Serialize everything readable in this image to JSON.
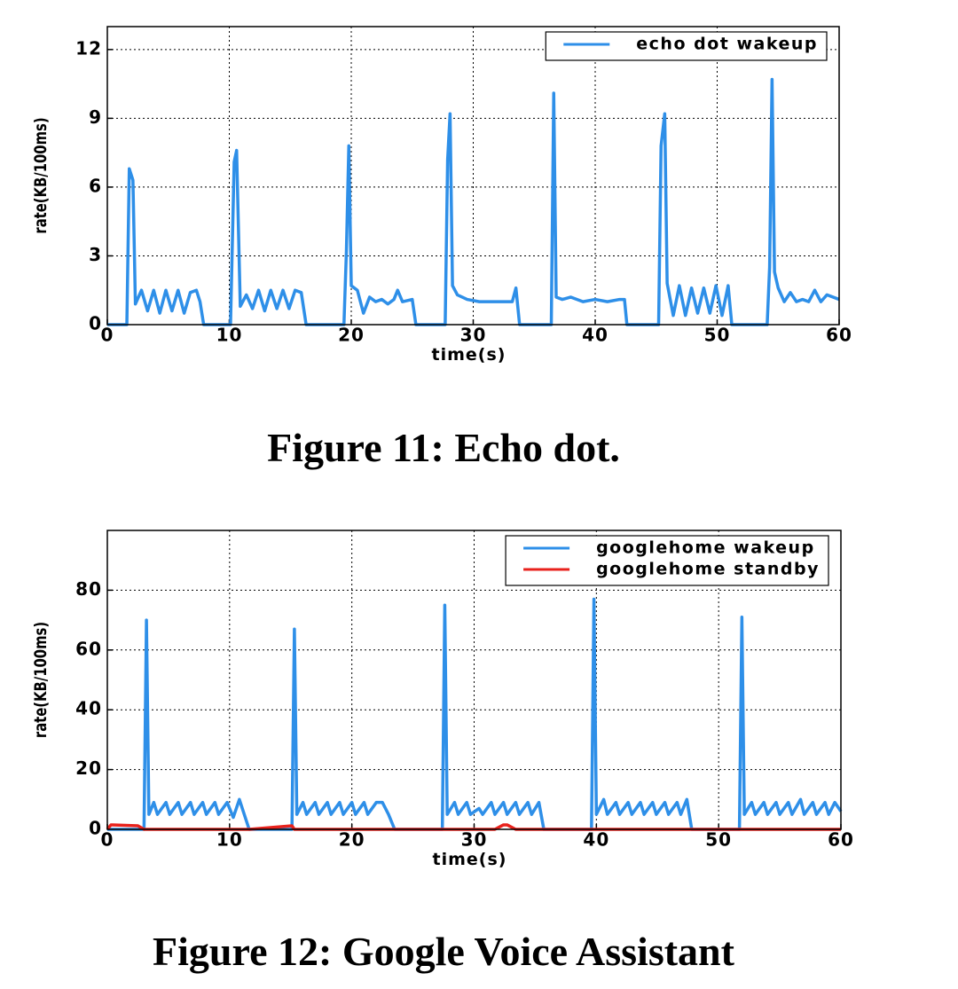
{
  "chart_data": [
    {
      "type": "line",
      "caption": "Figure 11: Echo dot.",
      "x_label": "time(s)",
      "y_label": "rate(KB/100ms)",
      "xlim": [
        0,
        60
      ],
      "xticks": [
        0,
        10,
        20,
        30,
        40,
        50,
        60
      ],
      "ylim": [
        0,
        13
      ],
      "yticks": [
        0,
        3,
        6,
        9,
        12
      ],
      "grid": true,
      "legend": "upper right",
      "x": [
        0,
        1.6,
        1.8,
        2.1,
        2.3,
        2.8,
        3.3,
        3.8,
        4.3,
        4.8,
        5.3,
        5.8,
        6.3,
        6.8,
        7.3,
        7.6,
        7.9,
        10.1,
        10.4,
        10.6,
        10.9,
        11.4,
        11.9,
        12.4,
        12.9,
        13.4,
        13.9,
        14.4,
        14.9,
        15.4,
        15.9,
        16.3,
        19.4,
        19.6,
        19.8,
        20.0,
        20.5,
        21.0,
        21.5,
        22.0,
        22.5,
        23.0,
        23.5,
        23.8,
        24.2,
        25.0,
        25.3,
        27.7,
        27.9,
        28.1,
        28.3,
        28.7,
        29.5,
        30.5,
        31.5,
        32.5,
        33.2,
        33.5,
        33.8,
        36.4,
        36.6,
        36.8,
        37.3,
        38.0,
        39,
        40,
        41,
        42,
        42.4,
        42.6,
        45.2,
        45.4,
        45.7,
        45.9,
        46.4,
        46.9,
        47.4,
        47.9,
        48.4,
        48.9,
        49.4,
        49.9,
        50.4,
        50.9,
        51.2,
        54.1,
        54.3,
        54.5,
        54.7,
        55.0,
        55.5,
        56,
        56.5,
        57,
        57.5,
        58,
        58.5,
        59,
        60
      ],
      "series": [
        {
          "name": "echo dot wakeup",
          "color": "#2e8fe8",
          "values": [
            0,
            0,
            6.8,
            6.3,
            0.9,
            1.5,
            0.6,
            1.5,
            0.5,
            1.5,
            0.6,
            1.5,
            0.5,
            1.4,
            1.5,
            1.0,
            0,
            0,
            7.1,
            7.6,
            0.8,
            1.3,
            0.7,
            1.5,
            0.6,
            1.5,
            0.7,
            1.5,
            0.7,
            1.5,
            1.4,
            0,
            0,
            3.2,
            7.8,
            1.7,
            1.5,
            0.5,
            1.2,
            1.0,
            1.1,
            0.9,
            1.1,
            1.5,
            1.0,
            1.1,
            0,
            0,
            7.2,
            9.2,
            1.7,
            1.3,
            1.1,
            1.0,
            1.0,
            1.0,
            1.0,
            1.6,
            0,
            0,
            10.1,
            1.2,
            1.1,
            1.2,
            1.0,
            1.1,
            1.0,
            1.1,
            1.1,
            0,
            0,
            7.8,
            9.2,
            1.8,
            0.4,
            1.7,
            0.4,
            1.6,
            0.5,
            1.6,
            0.5,
            1.7,
            0.4,
            1.7,
            0,
            0,
            2.5,
            10.7,
            2.3,
            1.6,
            1.0,
            1.4,
            1.0,
            1.1,
            1.0,
            1.5,
            1.0,
            1.3,
            1.1
          ]
        }
      ]
    },
    {
      "type": "line",
      "caption": "Figure 12: Google Voice Assistant",
      "x_label": "time(s)",
      "y_label": "rate(KB/100ms)",
      "xlim": [
        0,
        60
      ],
      "xticks": [
        0,
        10,
        20,
        30,
        40,
        50,
        60
      ],
      "ylim": [
        0,
        100
      ],
      "yticks": [
        0,
        20,
        40,
        60,
        80
      ],
      "grid": true,
      "legend": "upper right",
      "x": [
        0,
        0.3,
        2.5,
        3.0,
        3.2,
        3.4,
        3.8,
        4.1,
        4.8,
        5.1,
        5.8,
        6.1,
        6.8,
        7.1,
        7.8,
        8.1,
        8.8,
        9.1,
        9.8,
        10.3,
        10.8,
        11.2,
        11.6,
        15.1,
        15.3,
        15.5,
        16.0,
        16.3,
        17.0,
        17.3,
        18.0,
        18.3,
        19.0,
        19.3,
        20.0,
        20.3,
        21.0,
        21.3,
        22.0,
        22.5,
        23.0,
        23.5,
        27.4,
        27.6,
        27.8,
        28.4,
        28.7,
        29.4,
        29.7,
        30.4,
        30.7,
        31.4,
        31.7,
        32.4,
        32.7,
        33.4,
        33.7,
        34.4,
        34.7,
        35.3,
        35.7,
        39.6,
        39.8,
        40.0,
        40.6,
        40.9,
        41.6,
        41.9,
        42.6,
        42.9,
        43.6,
        43.9,
        44.6,
        44.9,
        45.6,
        45.9,
        46.6,
        46.9,
        47.4,
        47.8,
        51.7,
        51.9,
        52.1,
        52.7,
        53.0,
        53.7,
        54.0,
        54.7,
        55.0,
        55.7,
        56.0,
        56.7,
        57.0,
        57.7,
        58.0,
        58.7,
        59.0,
        59.5,
        60
      ],
      "series": [
        {
          "name": "googlehome wakeup",
          "color": "#2e8fe8",
          "values": [
            0,
            0,
            0,
            0,
            70,
            5,
            9,
            5,
            9,
            5,
            9,
            5,
            9,
            5,
            9,
            5,
            9,
            5,
            9,
            4,
            10,
            5,
            0,
            0,
            67,
            5,
            9,
            5,
            9,
            5,
            9,
            5,
            9,
            5,
            9,
            5,
            9,
            5,
            9,
            9,
            5,
            0,
            0,
            75,
            5,
            9,
            5,
            9,
            5,
            7,
            5,
            9,
            5,
            9,
            5,
            9,
            5,
            9,
            5,
            9,
            0,
            0,
            77,
            5,
            10,
            5,
            9,
            5,
            9,
            5,
            9,
            5,
            9,
            5,
            9,
            5,
            9,
            5,
            10,
            0,
            0,
            71,
            5,
            9,
            5,
            9,
            5,
            9,
            5,
            9,
            5,
            10,
            5,
            9,
            5,
            9,
            5,
            9,
            6
          ]
        },
        {
          "name": "googlehome standby",
          "color": "#e8221c",
          "values": [
            0,
            1.5,
            1.2,
            0,
            0,
            0,
            0,
            0,
            0,
            0,
            0,
            0,
            0,
            0,
            0,
            0,
            0,
            0,
            0,
            0,
            0,
            0,
            0,
            1.2,
            0,
            0,
            0,
            0,
            0,
            0,
            0,
            0,
            0,
            0,
            0,
            0,
            0,
            0,
            0,
            0,
            0,
            0,
            0,
            0,
            0,
            0,
            0,
            0,
            0,
            0,
            0,
            0,
            0,
            1.5,
            1.5,
            0,
            0,
            0,
            0,
            0,
            0,
            0,
            0,
            0,
            0,
            0,
            0,
            0,
            0,
            0,
            0,
            0,
            0,
            0,
            0,
            0,
            0,
            0,
            0,
            0,
            0,
            0,
            0,
            0,
            0,
            0,
            0,
            0,
            0,
            0,
            0,
            0,
            0,
            0,
            0,
            0,
            0,
            0,
            0
          ]
        }
      ]
    }
  ]
}
